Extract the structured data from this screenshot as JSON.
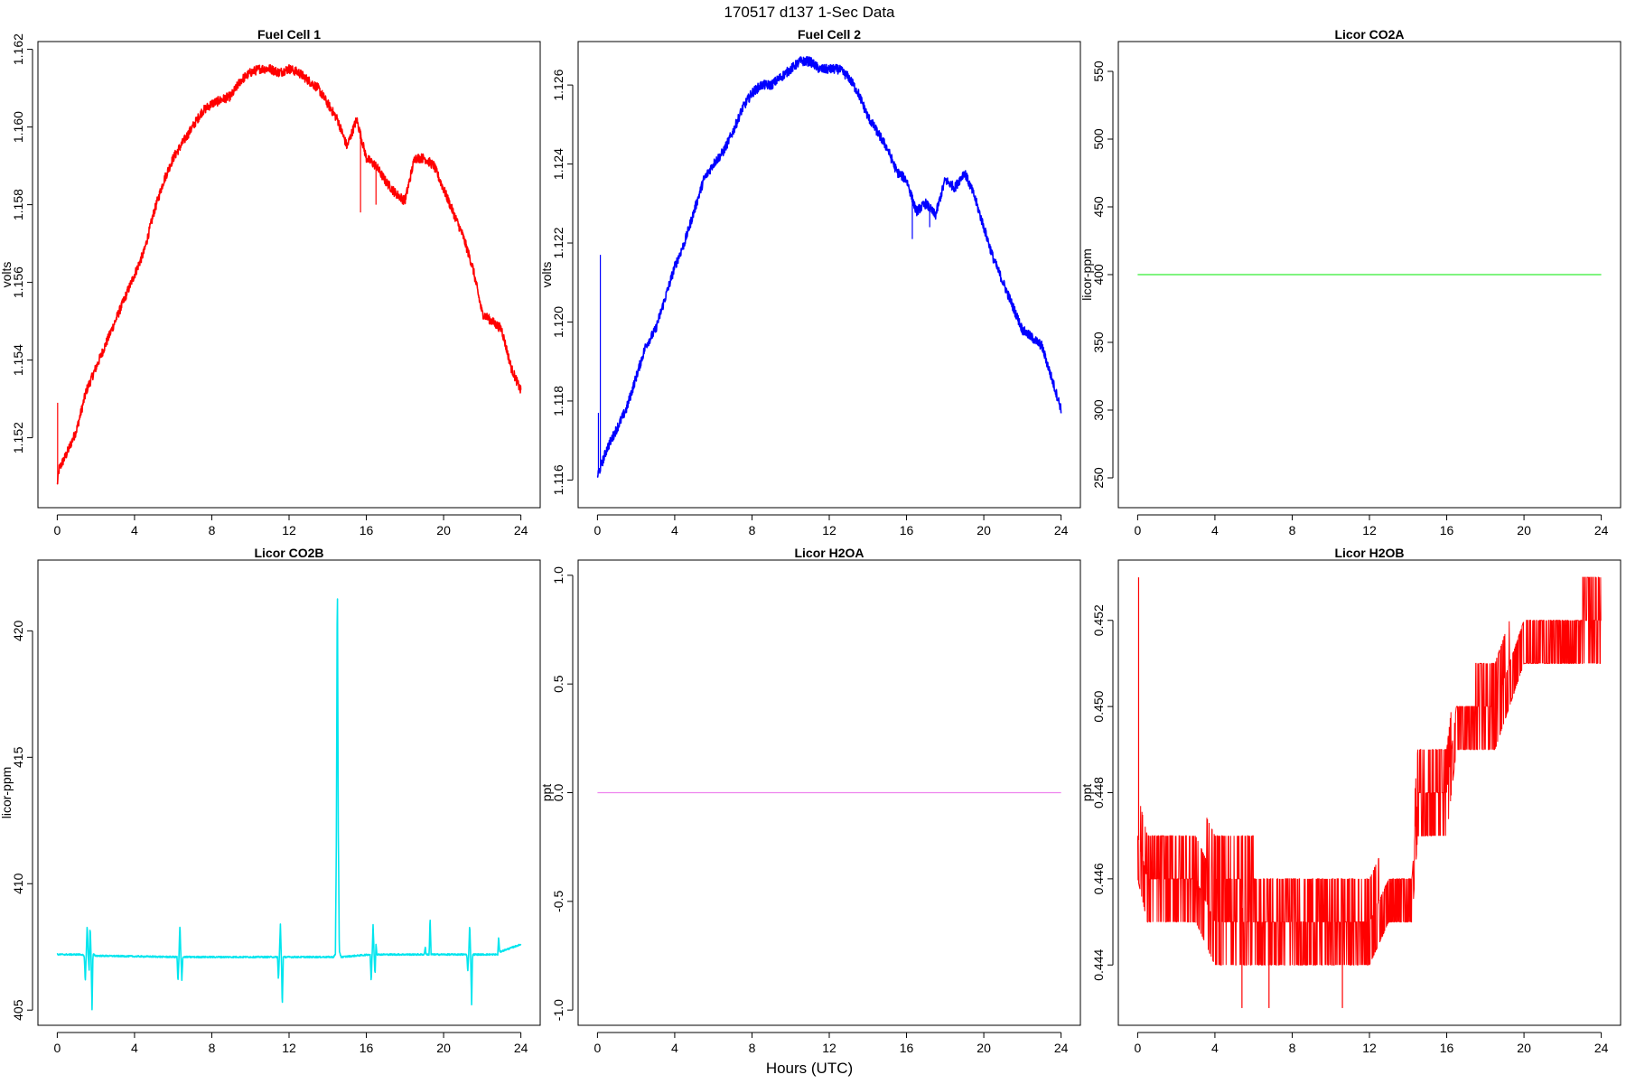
{
  "figure": {
    "title": "170517   d137   1-Sec Data",
    "xlabel": "Hours (UTC)"
  },
  "chart_data": [
    {
      "type": "line",
      "title": "Fuel Cell 1",
      "ylabel": "volts",
      "xlim": [
        -1,
        25
      ],
      "ylim": [
        1.1502,
        1.1622
      ],
      "xticks": [
        0,
        4,
        8,
        12,
        16,
        20,
        24
      ],
      "yticks": [
        1.152,
        1.154,
        1.156,
        1.158,
        1.16,
        1.162
      ],
      "ytick_labels": [
        "1.152",
        "1.154",
        "1.156",
        "1.158",
        "1.160",
        "1.162"
      ],
      "color": "#ff0000",
      "noise": 0.00012,
      "x": [
        0,
        0.1,
        0.5,
        1,
        1.5,
        2,
        2.5,
        3,
        3.5,
        4,
        4.5,
        5,
        5.5,
        6,
        6.5,
        7,
        7.5,
        8,
        8.5,
        9,
        9.5,
        10,
        10.5,
        11,
        11.5,
        12,
        12.5,
        13,
        13.5,
        14,
        14.5,
        15,
        15.5,
        16,
        16.5,
        17,
        17.5,
        18,
        18.5,
        19,
        19.5,
        20,
        20.5,
        21,
        21.5,
        22,
        22.5,
        23,
        23.5,
        24
      ],
      "y": [
        1.1508,
        1.1512,
        1.1516,
        1.1522,
        1.1532,
        1.1538,
        1.1544,
        1.155,
        1.1556,
        1.1562,
        1.1568,
        1.1578,
        1.1586,
        1.1592,
        1.1596,
        1.16,
        1.1604,
        1.1606,
        1.1607,
        1.1608,
        1.1612,
        1.1614,
        1.1615,
        1.1615,
        1.1614,
        1.1615,
        1.1614,
        1.1612,
        1.161,
        1.1606,
        1.1602,
        1.1595,
        1.1602,
        1.1592,
        1.159,
        1.1586,
        1.1583,
        1.1581,
        1.1592,
        1.1592,
        1.159,
        1.1584,
        1.1578,
        1.1572,
        1.1564,
        1.1552,
        1.155,
        1.1548,
        1.1538,
        1.1532
      ],
      "spikes": [
        {
          "x": 0.02,
          "y": 1.1529
        },
        {
          "x": 15.7,
          "y": 1.1578
        },
        {
          "x": 16.5,
          "y": 1.158
        },
        {
          "x": 17.9,
          "y": 1.158
        }
      ]
    },
    {
      "type": "line",
      "title": "Fuel Cell 2",
      "ylabel": "volts",
      "xlim": [
        -1,
        25
      ],
      "ylim": [
        1.1153,
        1.1271
      ],
      "xticks": [
        0,
        4,
        8,
        12,
        16,
        20,
        24
      ],
      "yticks": [
        1.116,
        1.118,
        1.12,
        1.122,
        1.124,
        1.126
      ],
      "ytick_labels": [
        "1.116",
        "1.118",
        "1.120",
        "1.122",
        "1.124",
        "1.126"
      ],
      "color": "#0000ff",
      "noise": 0.00012,
      "x": [
        0,
        0.5,
        1,
        1.5,
        2,
        2.5,
        3,
        3.5,
        4,
        4.5,
        5,
        5.5,
        6,
        6.5,
        7,
        7.5,
        8,
        8.5,
        9,
        9.5,
        10,
        10.5,
        11,
        11.5,
        12,
        12.5,
        13,
        13.5,
        14,
        14.5,
        15,
        15.5,
        16,
        16.5,
        17,
        17.5,
        18,
        18.5,
        19,
        19.5,
        20,
        20.5,
        21,
        21.5,
        22,
        22.5,
        23,
        23.5,
        24
      ],
      "y": [
        1.1161,
        1.1168,
        1.1173,
        1.1178,
        1.1186,
        1.1194,
        1.1198,
        1.1206,
        1.1214,
        1.122,
        1.1228,
        1.1236,
        1.124,
        1.1243,
        1.1248,
        1.1254,
        1.1258,
        1.126,
        1.126,
        1.1262,
        1.1264,
        1.1266,
        1.1266,
        1.1264,
        1.1264,
        1.1264,
        1.1262,
        1.1258,
        1.1252,
        1.1248,
        1.1244,
        1.1238,
        1.1236,
        1.1228,
        1.123,
        1.1227,
        1.1236,
        1.1234,
        1.1238,
        1.1232,
        1.1224,
        1.1216,
        1.121,
        1.1204,
        1.1198,
        1.1196,
        1.1194,
        1.1186,
        1.1178
      ],
      "spikes": [
        {
          "x": 0.05,
          "y": 1.1177
        },
        {
          "x": 0.15,
          "y": 1.1217
        },
        {
          "x": 16.3,
          "y": 1.1221
        },
        {
          "x": 17.2,
          "y": 1.1224
        }
      ]
    },
    {
      "type": "line",
      "title": "Licor CO2A",
      "ylabel": "licor-ppm",
      "xlim": [
        -1,
        25
      ],
      "ylim": [
        228,
        572
      ],
      "xticks": [
        0,
        4,
        8,
        12,
        16,
        20,
        24
      ],
      "yticks": [
        250,
        300,
        350,
        400,
        450,
        500,
        550
      ],
      "ytick_labels": [
        "250",
        "300",
        "350",
        "400",
        "450",
        "500",
        "550"
      ],
      "color": "#33ee33",
      "noise": 0,
      "x": [
        0,
        24
      ],
      "y": [
        400,
        400
      ],
      "spikes": []
    },
    {
      "type": "line",
      "title": "Licor CO2B",
      "ylabel": "licor-ppm",
      "xlim": [
        -1,
        25
      ],
      "ylim": [
        404.4,
        422.8
      ],
      "xticks": [
        0,
        4,
        8,
        12,
        16,
        20,
        24
      ],
      "yticks": [
        405,
        410,
        415,
        420
      ],
      "ytick_labels": [
        "405",
        "410",
        "415",
        "420"
      ],
      "color": "#00e5ee",
      "noise": 0.03,
      "x": [
        0,
        1.3,
        1.4,
        1.45,
        1.5,
        1.55,
        1.6,
        1.65,
        1.7,
        1.75,
        1.8,
        1.85,
        1.9,
        1.95,
        2.0,
        6.2,
        6.25,
        6.3,
        6.35,
        6.4,
        6.45,
        6.5,
        11.4,
        11.45,
        11.5,
        11.55,
        11.6,
        11.65,
        11.7,
        14.3,
        14.4,
        14.45,
        14.5,
        14.55,
        14.6,
        14.7,
        16.2,
        16.25,
        16.3,
        16.35,
        16.4,
        16.45,
        16.5,
        16.55,
        16.6,
        19.0,
        19.05,
        19.1,
        19.25,
        19.3,
        19.35,
        21.2,
        21.25,
        21.3,
        21.35,
        21.4,
        21.45,
        21.5,
        21.55,
        21.6,
        22.8,
        22.85,
        22.9,
        24
      ],
      "y": [
        407.2,
        407.2,
        407.1,
        406.1,
        407.2,
        408.4,
        407.2,
        406.6,
        408.3,
        407.2,
        405.0,
        407.2,
        407.2,
        407.15,
        407.15,
        407.1,
        406.1,
        407.1,
        408.4,
        407.1,
        406.2,
        407.1,
        407.1,
        406.2,
        407.2,
        408.4,
        407.1,
        405.1,
        407.1,
        407.1,
        407.2,
        412,
        422.3,
        412,
        407.3,
        407.1,
        407.2,
        406.1,
        407.2,
        408.4,
        407.2,
        406.4,
        407.6,
        407.2,
        407.2,
        407.2,
        407.5,
        407.2,
        407.2,
        408.7,
        407.2,
        407.2,
        406.5,
        407.2,
        408.4,
        407.2,
        405.2,
        407.2,
        407.2,
        407.2,
        407.2,
        407.9,
        407.3,
        407.6
      ],
      "spikes": []
    },
    {
      "type": "line",
      "title": "Licor H2OA",
      "ylabel": "ppt",
      "xlim": [
        -1,
        25
      ],
      "ylim": [
        -1.07,
        1.07
      ],
      "xticks": [
        0,
        4,
        8,
        12,
        16,
        20,
        24
      ],
      "yticks": [
        -1.0,
        -0.5,
        0.0,
        0.5,
        1.0
      ],
      "ytick_labels": [
        "-1.0",
        "-0.5",
        "0.0",
        "0.5",
        "1.0"
      ],
      "color": "#ee82ee",
      "noise": 0,
      "x": [
        0,
        24
      ],
      "y": [
        0,
        0
      ],
      "spikes": []
    },
    {
      "type": "line",
      "title": "Licor H2OB",
      "ylabel": "ppt",
      "xlim": [
        -1,
        25
      ],
      "ylim": [
        0.4426,
        0.4534
      ],
      "xticks": [
        0,
        4,
        8,
        12,
        16,
        20,
        24
      ],
      "yticks": [
        0.444,
        0.446,
        0.448,
        0.45,
        0.452
      ],
      "ytick_labels": [
        "0.444",
        "0.446",
        "0.448",
        "0.450",
        "0.452"
      ],
      "color": "#ff0000",
      "noise": 0,
      "quantized": true,
      "band": [
        {
          "x": 0,
          "lo": 0.446,
          "hi": 0.448
        },
        {
          "x": 0.5,
          "lo": 0.445,
          "hi": 0.447
        },
        {
          "x": 3,
          "lo": 0.445,
          "hi": 0.447
        },
        {
          "x": 4,
          "lo": 0.444,
          "hi": 0.447
        },
        {
          "x": 8,
          "lo": 0.444,
          "hi": 0.446
        },
        {
          "x": 12,
          "lo": 0.444,
          "hi": 0.446
        },
        {
          "x": 13,
          "lo": 0.445,
          "hi": 0.446
        },
        {
          "x": 14.2,
          "lo": 0.445,
          "hi": 0.446
        },
        {
          "x": 14.5,
          "lo": 0.447,
          "hi": 0.449
        },
        {
          "x": 16,
          "lo": 0.447,
          "hi": 0.449
        },
        {
          "x": 16.5,
          "lo": 0.449,
          "hi": 0.45
        },
        {
          "x": 18.5,
          "lo": 0.449,
          "hi": 0.451
        },
        {
          "x": 20,
          "lo": 0.451,
          "hi": 0.452
        },
        {
          "x": 22,
          "lo": 0.451,
          "hi": 0.452
        },
        {
          "x": 24,
          "lo": 0.451,
          "hi": 0.453
        }
      ],
      "spikes": [
        {
          "x": 0.05,
          "y": 0.453
        },
        {
          "x": 6.8,
          "y": 0.443
        },
        {
          "x": 10.6,
          "y": 0.443
        },
        {
          "x": 5.4,
          "y": 0.443
        }
      ]
    }
  ]
}
